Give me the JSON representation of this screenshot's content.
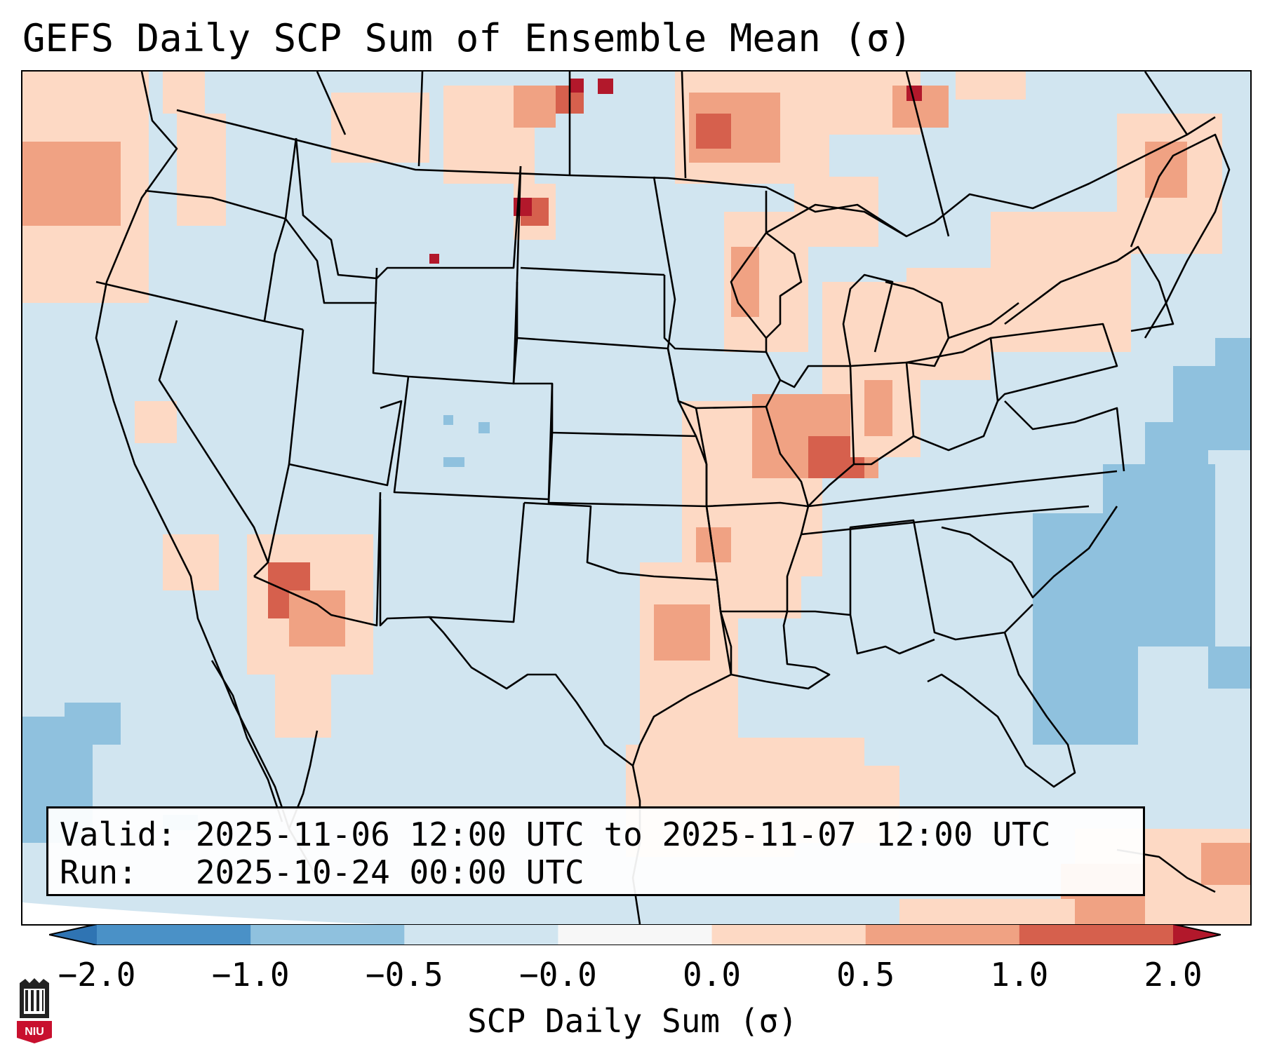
{
  "title": "GEFS Daily SCP Sum of Ensemble Mean (σ)",
  "info": {
    "valid_line": "Valid: 2025-11-06 12:00 UTC to 2025-11-07 12:00 UTC",
    "run_line": "Run:   2025-10-24 00:00 UTC"
  },
  "colorbar": {
    "label": "SCP Daily Sum (σ)",
    "ticks": [
      "−2.0",
      "−1.0",
      "−0.5",
      "−0.0",
      "0.0",
      "0.5",
      "1.0",
      "2.0"
    ],
    "colors": [
      "#4a91c7",
      "#8fc1de",
      "#d1e5f0",
      "#f7f7f7",
      "#fdd9c4",
      "#f0a283",
      "#d6604d"
    ],
    "extend_low_color": "#2f74b3",
    "extend_high_color": "#b2182b"
  },
  "map": {
    "background_color": "#d1e5f0",
    "projection_edge_color": "#ffffff",
    "boundary_color": "#000000"
  },
  "logo": {
    "text": "NIU",
    "color": "#c8102e"
  }
}
